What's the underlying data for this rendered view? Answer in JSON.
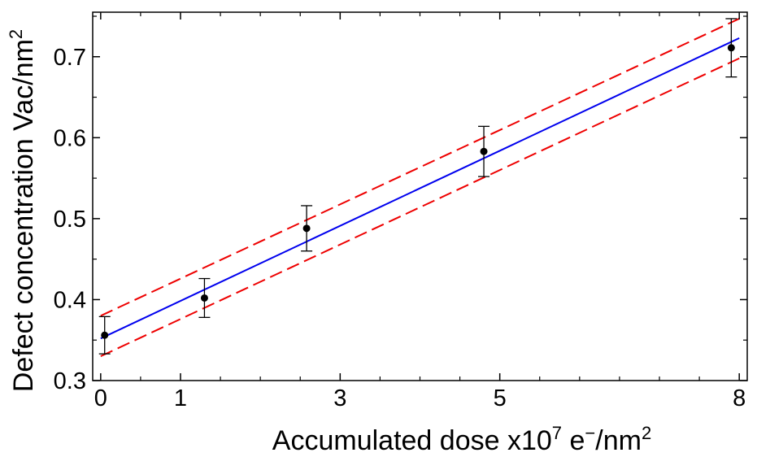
{
  "chart_data": {
    "type": "scatter",
    "xlabel": {
      "main": "Accumulated dose x10",
      "exp": "7",
      "unit": " e",
      "unit_sup": "−",
      "tail": "/nm",
      "tail_sup": "2"
    },
    "ylabel": {
      "main": "Defect concentration Vac/nm",
      "exp": "2"
    },
    "xlim": [
      -0.1,
      8.1
    ],
    "ylim": [
      0.3,
      0.755
    ],
    "x_ticks": [
      {
        "value": 0,
        "label": "0"
      },
      {
        "value": 1,
        "label": "1"
      },
      {
        "value": 3,
        "label": "3"
      },
      {
        "value": 5,
        "label": "5"
      },
      {
        "value": 8,
        "label": "8"
      }
    ],
    "x_minor_ticks": [
      0.5,
      1.5,
      2,
      2.5,
      3.5,
      4,
      4.5,
      5.5,
      6,
      6.5,
      7,
      7.5
    ],
    "y_ticks": [
      {
        "value": 0.3,
        "label": "0.3"
      },
      {
        "value": 0.4,
        "label": "0.4"
      },
      {
        "value": 0.5,
        "label": "0.5"
      },
      {
        "value": 0.6,
        "label": "0.6"
      },
      {
        "value": 0.7,
        "label": "0.7"
      }
    ],
    "y_minor_ticks": [
      0.35,
      0.45,
      0.55,
      0.65,
      0.75
    ],
    "points": [
      {
        "x": 0.05,
        "y": 0.356,
        "err": 0.023
      },
      {
        "x": 1.3,
        "y": 0.402,
        "err": 0.024
      },
      {
        "x": 2.58,
        "y": 0.488,
        "err": 0.028
      },
      {
        "x": 4.8,
        "y": 0.583,
        "err": 0.031
      },
      {
        "x": 7.9,
        "y": 0.711,
        "err": 0.036
      }
    ],
    "fit_line": {
      "x": [
        0.0,
        8.0
      ],
      "y": [
        0.352,
        0.723
      ],
      "color": "#0000ee"
    },
    "confidence_bands": [
      {
        "x": [
          0.0,
          8.0
        ],
        "y": [
          0.38,
          0.747
        ],
        "color": "#ee0000",
        "style": "dashed"
      },
      {
        "x": [
          0.0,
          8.0
        ],
        "y": [
          0.33,
          0.698
        ],
        "color": "#ee0000",
        "style": "dashed"
      }
    ],
    "grid": false,
    "legend": "none"
  }
}
